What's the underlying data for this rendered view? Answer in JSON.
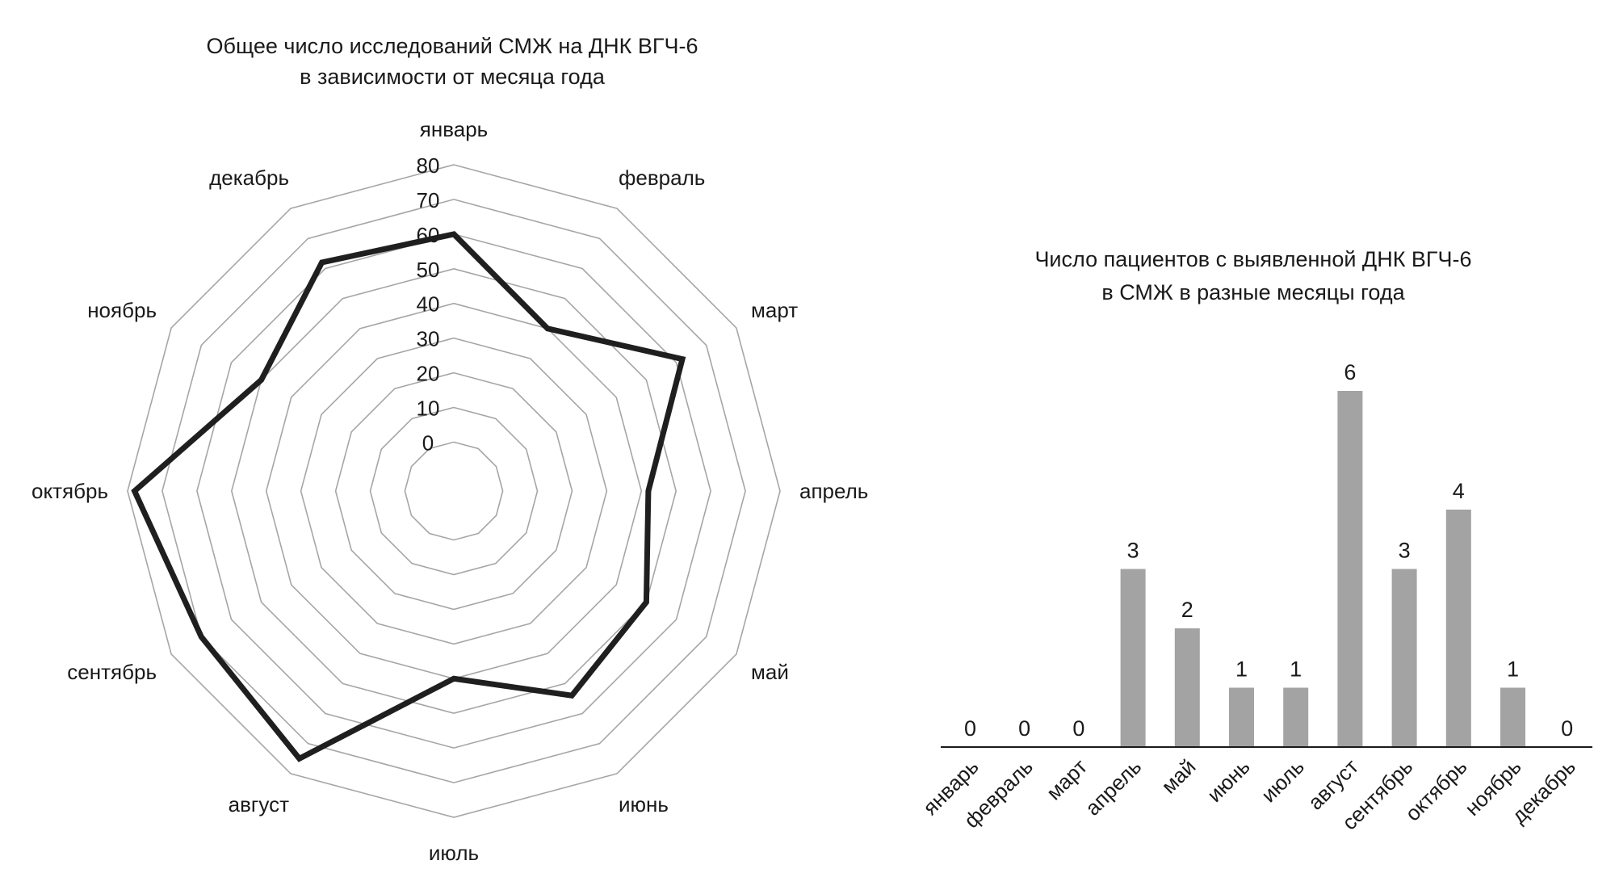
{
  "chart_data": [
    {
      "type": "radar",
      "title_lines": [
        "Общее число исследований СМЖ на ДНК ВГЧ-6",
        "в зависимости от месяца года"
      ],
      "categories": [
        "январь",
        "февраль",
        "март",
        "апрель",
        "май",
        "июнь",
        "июль",
        "август",
        "сентябрь",
        "октябрь",
        "ноябрь",
        "декабрь"
      ],
      "values": [
        60,
        40,
        62,
        42,
        50,
        54,
        40,
        75,
        70,
        78,
        50,
        62
      ],
      "rlim": [
        0,
        80
      ],
      "ticks": [
        "0",
        "10",
        "20",
        "30",
        "40",
        "50",
        "60",
        "70",
        "80"
      ],
      "grid": true,
      "colors": {
        "series": "#1f1f1f",
        "grid": "#a6a6a6"
      }
    },
    {
      "type": "bar",
      "title_lines": [
        "Число пациентов с выявленной ДНК ВГЧ-6",
        "в СМЖ в разные месяцы года"
      ],
      "categories": [
        "январь",
        "февраль",
        "март",
        "апрель",
        "май",
        "июнь",
        "июль",
        "август",
        "сентябрь",
        "октябрь",
        "ноябрь",
        "декабрь"
      ],
      "values": [
        0,
        0,
        0,
        3,
        2,
        1,
        1,
        6,
        3,
        4,
        1,
        0
      ],
      "data_labels": true,
      "colors": {
        "bar": "#a3a3a3",
        "axis": "#1a1a1a"
      }
    }
  ]
}
